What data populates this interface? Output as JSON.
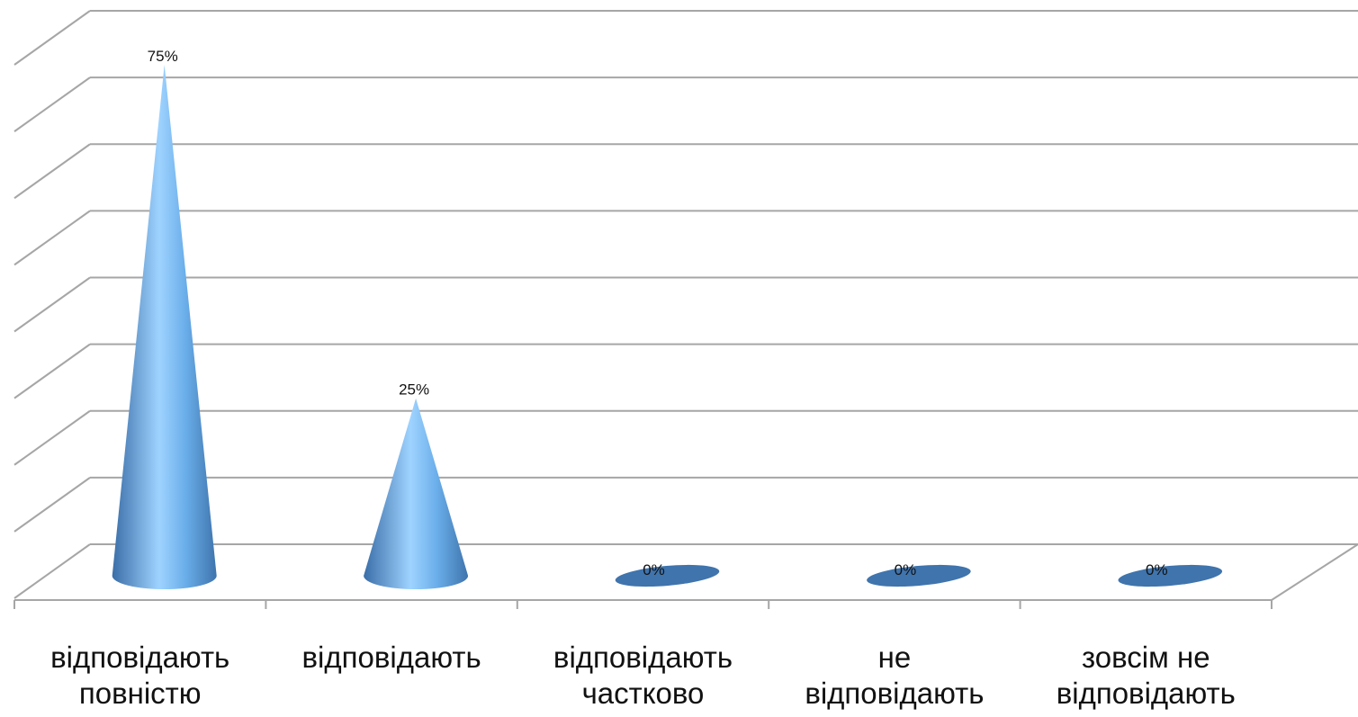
{
  "chart_data": {
    "type": "bar",
    "style": "3d-cone",
    "categories": [
      [
        "відповідають",
        "повністю"
      ],
      [
        "відповідають"
      ],
      [
        "відповідають",
        "частково"
      ],
      [
        "не",
        "відповідають"
      ],
      [
        "зовсім не",
        "відповідають"
      ]
    ],
    "values": [
      75,
      25,
      0,
      0,
      0
    ],
    "data_labels": [
      "75%",
      "25%",
      "0%",
      "0%",
      "0%"
    ],
    "unit": "%",
    "ylim": [
      0,
      80
    ],
    "grid": true,
    "legend": "none",
    "title": "",
    "xlabel": "",
    "ylabel": ""
  },
  "colors": {
    "cone_light": "#9fd3ff",
    "cone_mid": "#5a9de0",
    "cone_dark": "#3a6ea8",
    "base_ellipse": "#3f74ad",
    "gridline": "#a6a6a6"
  }
}
